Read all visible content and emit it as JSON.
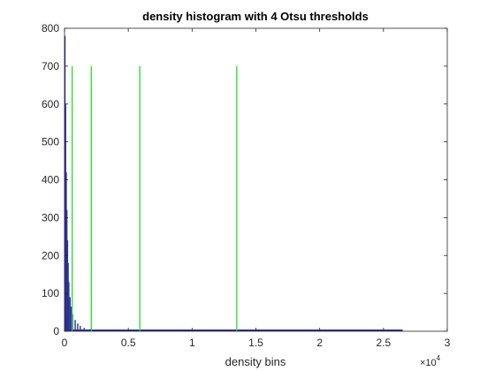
{
  "chart_data": {
    "type": "bar",
    "title": "density histogram with 4 Otsu thresholds",
    "xlabel": "density bins",
    "ylabel": "",
    "x_exponent_label": "×10",
    "x_exponent_power": "4",
    "xlim": [
      0,
      30000
    ],
    "ylim": [
      0,
      800
    ],
    "xticks": [
      0,
      5000,
      10000,
      15000,
      20000,
      25000,
      30000
    ],
    "xtick_labels": [
      "0",
      "0.5",
      "1",
      "1.5",
      "2",
      "2.5",
      "3"
    ],
    "yticks": [
      0,
      100,
      200,
      300,
      400,
      500,
      600,
      700,
      800
    ],
    "ytick_labels": [
      "0",
      "100",
      "200",
      "300",
      "400",
      "500",
      "600",
      "700",
      "800"
    ],
    "grid": false,
    "histogram": {
      "name": "density histogram",
      "color": "#2f2f9a",
      "x": [
        0,
        50,
        100,
        150,
        200,
        250,
        300,
        400,
        500,
        600,
        800,
        1000,
        1200,
        1500,
        2000,
        3000,
        5000,
        8000,
        12000,
        18000,
        26500
      ],
      "counts": [
        780,
        600,
        420,
        320,
        240,
        180,
        130,
        90,
        65,
        45,
        30,
        20,
        14,
        9,
        6,
        4,
        3,
        2,
        2,
        1,
        1
      ]
    },
    "thresholds": {
      "name": "Otsu thresholds",
      "color": "#33e033",
      "x": [
        600,
        2100,
        5900,
        13500
      ],
      "height": 700
    }
  }
}
